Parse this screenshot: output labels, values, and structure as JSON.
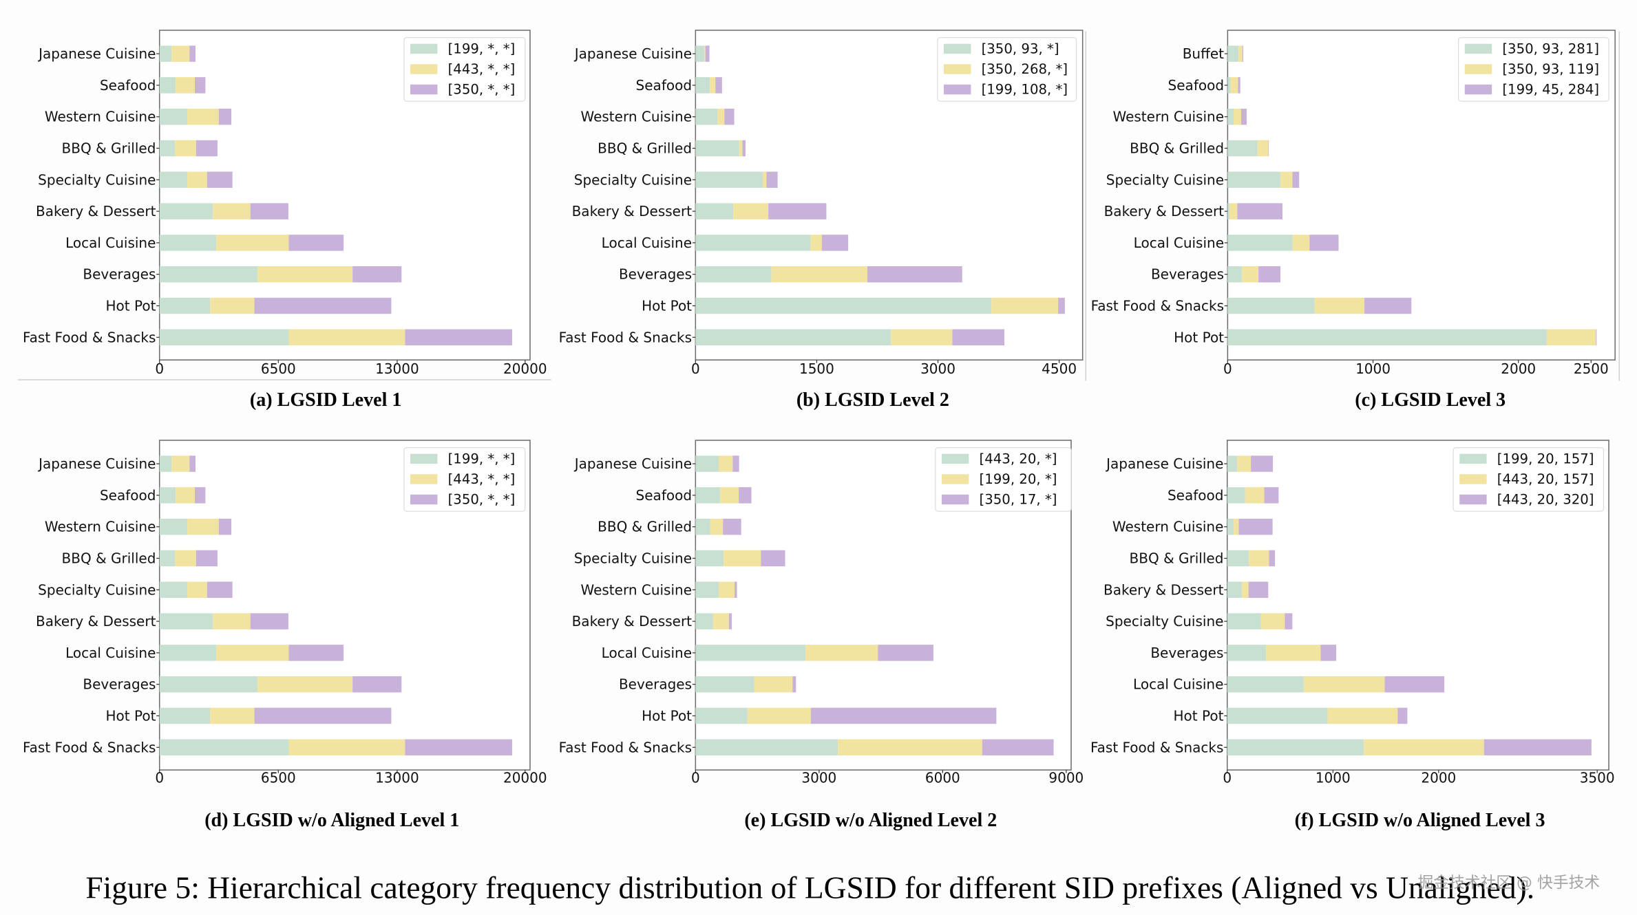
{
  "figure": {
    "caption": "Figure 5: Hierarchical category frequency distribution of LGSID for different SID prefixes (Aligned vs Unaligned).",
    "watermark": "掘金技术社区 @ 快手技术"
  },
  "colors": {
    "series_1": "#c8e0d2",
    "series_2": "#f2e4a0",
    "series_3": "#c9b2da"
  },
  "chart_data": [
    {
      "id": "a",
      "type": "bar",
      "orientation": "horizontal",
      "stacked": true,
      "title": "(a) LGSID Level 1",
      "xlabel": "",
      "ylabel": "",
      "xlim": [
        0,
        20270
      ],
      "xticks": [
        0,
        6500,
        13000,
        20000
      ],
      "xtick_labels": [
        "0",
        "6500",
        "13000",
        "20000"
      ],
      "legend": "top-right",
      "grid": false,
      "categories": [
        "Japanese Cuisine",
        "Seafood",
        "Western Cuisine",
        "BBQ & Grilled",
        "Specialty Cuisine",
        "Bakery & Dessert",
        "Local Cuisine",
        "Beverages",
        "Hot Pot",
        "Fast Food & Snacks"
      ],
      "series": [
        {
          "name": "[199, *, *]",
          "values": [
            660,
            880,
            1520,
            840,
            1520,
            2920,
            3100,
            5360,
            2770,
            7070
          ]
        },
        {
          "name": "[443, *, *]",
          "values": [
            980,
            1050,
            1720,
            1160,
            1080,
            2050,
            3970,
            5200,
            2420,
            6360
          ]
        },
        {
          "name": "[350, *, *]",
          "values": [
            330,
            580,
            690,
            1170,
            1390,
            2080,
            3000,
            2680,
            7490,
            5860
          ]
        }
      ]
    },
    {
      "id": "b",
      "type": "bar",
      "orientation": "horizontal",
      "stacked": true,
      "title": "(b) LGSID Level 2",
      "xlabel": "",
      "ylabel": "",
      "xlim": [
        0,
        4790
      ],
      "xticks": [
        0,
        1500,
        3000,
        4500
      ],
      "xtick_labels": [
        "0",
        "1500",
        "3000",
        "4500"
      ],
      "legend": "top-right",
      "grid": false,
      "categories": [
        "Japanese Cuisine",
        "Seafood",
        "Western Cuisine",
        "BBQ & Grilled",
        "Specialty Cuisine",
        "Bakery & Dessert",
        "Local Cuisine",
        "Beverages",
        "Hot Pot",
        "Fast Food & Snacks"
      ],
      "series": [
        {
          "name": "[350, 93, *]",
          "values": [
            110,
            178,
            272,
            540,
            832,
            466,
            1423,
            939,
            3661,
            2417
          ]
        },
        {
          "name": "[350, 268, *]",
          "values": [
            12,
            68,
            85,
            40,
            46,
            435,
            140,
            1187,
            826,
            761
          ]
        },
        {
          "name": "[199, 108, *]",
          "values": [
            50,
            82,
            122,
            39,
            138,
            718,
            326,
            1174,
            83,
            644
          ]
        }
      ]
    },
    {
      "id": "c",
      "type": "bar",
      "orientation": "horizontal",
      "stacked": true,
      "title": "(c) LGSID Level 3",
      "xlabel": "",
      "ylabel": "",
      "xlim": [
        0,
        2665
      ],
      "xticks": [
        0,
        1000,
        2000,
        2500
      ],
      "xtick_labels": [
        "0",
        "1000",
        "2000",
        "2500"
      ],
      "legend": "top-right",
      "grid": false,
      "categories": [
        "Buffet",
        "Seafood",
        "Western Cuisine",
        "BBQ & Grilled",
        "Specialty Cuisine",
        "Bakery & Dessert",
        "Local Cuisine",
        "Beverages",
        "Fast Food & Snacks",
        "Hot Pot"
      ],
      "series": [
        {
          "name": "[350, 93, 281]",
          "values": [
            75,
            20,
            41,
            205,
            364,
            12,
            446,
            99,
            598,
            2195
          ]
        },
        {
          "name": "[350, 93, 119]",
          "values": [
            26,
            51,
            52,
            75,
            82,
            54,
            117,
            113,
            343,
            338
          ]
        },
        {
          "name": "[199, 45, 284]",
          "values": [
            6,
            16,
            38,
            3,
            46,
            311,
            200,
            151,
            323,
            5
          ]
        }
      ]
    },
    {
      "id": "d",
      "type": "bar",
      "orientation": "horizontal",
      "stacked": true,
      "title": "(d) LGSID w/o Aligned Level 1",
      "xlabel": "",
      "ylabel": "",
      "xlim": [
        0,
        20270
      ],
      "xticks": [
        0,
        6500,
        13000,
        20000
      ],
      "xtick_labels": [
        "0",
        "6500",
        "13000",
        "20000"
      ],
      "legend": "top-right",
      "grid": false,
      "categories": [
        "Japanese Cuisine",
        "Seafood",
        "Western Cuisine",
        "BBQ & Grilled",
        "Specialty Cuisine",
        "Bakery & Dessert",
        "Local Cuisine",
        "Beverages",
        "Hot Pot",
        "Fast Food & Snacks"
      ],
      "series": [
        {
          "name": "[199, *, *]",
          "values": [
            660,
            880,
            1520,
            840,
            1520,
            2920,
            3100,
            5360,
            2770,
            7070
          ]
        },
        {
          "name": "[443, *, *]",
          "values": [
            980,
            1050,
            1720,
            1160,
            1080,
            2050,
            3970,
            5200,
            2420,
            6360
          ]
        },
        {
          "name": "[350, *, *]",
          "values": [
            330,
            580,
            690,
            1170,
            1390,
            2080,
            3000,
            2680,
            7490,
            5860
          ]
        }
      ]
    },
    {
      "id": "e",
      "type": "bar",
      "orientation": "horizontal",
      "stacked": true,
      "title": "(e) LGSID w/o Aligned Level 2",
      "xlabel": "",
      "ylabel": "",
      "xlim": [
        0,
        9120
      ],
      "xticks": [
        0,
        3000,
        6000,
        9000
      ],
      "xtick_labels": [
        "0",
        "3000",
        "6000",
        "9000"
      ],
      "legend": "top-right",
      "grid": false,
      "categories": [
        "Japanese Cuisine",
        "Seafood",
        "BBQ & Grilled",
        "Specialty Cuisine",
        "Western Cuisine",
        "Bakery & Dessert",
        "Local Cuisine",
        "Beverages",
        "Hot Pot",
        "Fast Food & Snacks"
      ],
      "series": [
        {
          "name": "[443, 20, *]",
          "values": [
            563,
            597,
            358,
            683,
            563,
            427,
            2671,
            1425,
            1263,
            3456
          ]
        },
        {
          "name": "[199, 20, *]",
          "values": [
            341,
            452,
            308,
            904,
            384,
            384,
            1757,
            930,
            1536,
            3506
          ]
        },
        {
          "name": "[350, 17, *]",
          "values": [
            154,
            308,
            443,
            589,
            60,
            68,
            1348,
            85,
            4505,
            1733
          ]
        }
      ]
    },
    {
      "id": "f",
      "type": "bar",
      "orientation": "horizontal",
      "stacked": true,
      "title": "(f) LGSID w/o Aligned Level 3",
      "xlabel": "",
      "ylabel": "",
      "xlim": [
        0,
        3610
      ],
      "xticks": [
        0,
        1000,
        2000,
        3500
      ],
      "xtick_labels": [
        "0",
        "1000",
        "2000",
        "3500"
      ],
      "legend": "top-right",
      "grid": false,
      "categories": [
        "Japanese Cuisine",
        "Seafood",
        "Western Cuisine",
        "BBQ & Grilled",
        "Bakery & Dessert",
        "Specialty Cuisine",
        "Beverages",
        "Local Cuisine",
        "Hot Pot",
        "Fast Food & Snacks"
      ],
      "series": [
        {
          "name": "[199, 20, 157]",
          "values": [
            95,
            170,
            61,
            204,
            139,
            320,
            367,
            724,
            949,
            1293
          ]
        },
        {
          "name": "[443, 20, 157]",
          "values": [
            129,
            180,
            48,
            191,
            62,
            224,
            517,
            766,
            663,
            1136
          ]
        },
        {
          "name": "[443, 20, 320]",
          "values": [
            208,
            136,
            320,
            57,
            187,
            72,
            147,
            564,
            92,
            1017
          ]
        }
      ]
    }
  ]
}
